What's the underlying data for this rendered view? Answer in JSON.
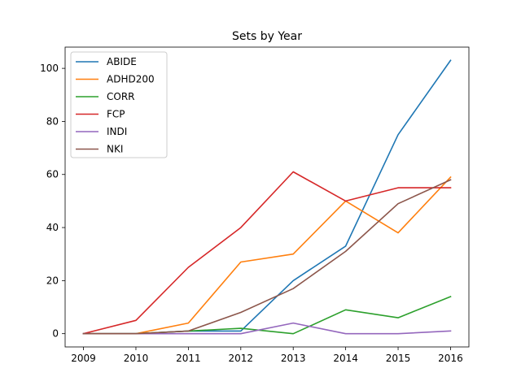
{
  "chart_data": {
    "type": "line",
    "title": "Sets by Year",
    "xlabel": "",
    "ylabel": "",
    "x": [
      2009,
      2010,
      2011,
      2012,
      2013,
      2014,
      2015,
      2016
    ],
    "xlim": [
      2008.65,
      2016.35
    ],
    "ylim": [
      -5,
      108
    ],
    "yticks": [
      0,
      20,
      40,
      60,
      80,
      100
    ],
    "grid": false,
    "legend_position": "top-left",
    "series": [
      {
        "name": "ABIDE",
        "color": "#1f77b4",
        "values": [
          0,
          0,
          1,
          1,
          20,
          33,
          75,
          103
        ]
      },
      {
        "name": "ADHD200",
        "color": "#ff7f0e",
        "values": [
          0,
          0,
          4,
          27,
          30,
          50,
          38,
          59
        ]
      },
      {
        "name": "CORR",
        "color": "#2ca02c",
        "values": [
          0,
          0,
          1,
          2,
          0,
          9,
          6,
          14
        ]
      },
      {
        "name": "FCP",
        "color": "#d62728",
        "values": [
          0,
          5,
          25,
          40,
          61,
          50,
          55,
          55
        ]
      },
      {
        "name": "INDI",
        "color": "#9467bd",
        "values": [
          0,
          0,
          0,
          0,
          4,
          0,
          0,
          1
        ]
      },
      {
        "name": "NKI",
        "color": "#8c564b",
        "values": [
          0,
          0,
          1,
          8,
          17,
          31,
          49,
          58
        ]
      }
    ]
  }
}
